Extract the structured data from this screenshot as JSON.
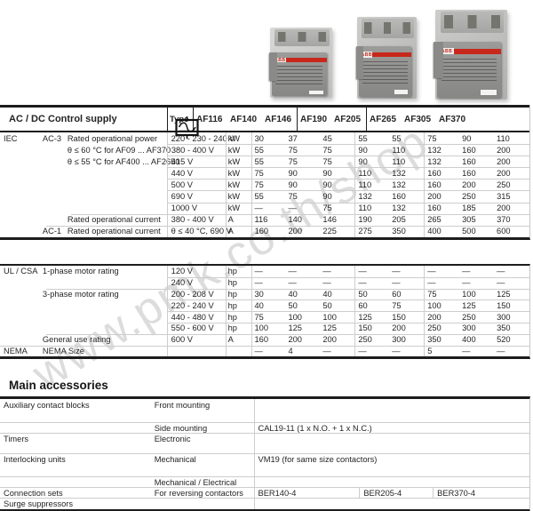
{
  "watermark": {
    "text": "www.pmk.co.th/shop"
  },
  "products": {
    "logo": "ABB"
  },
  "header": {
    "title": "AC / DC Control supply",
    "type_label": "Type",
    "models": [
      "AF116",
      "AF140",
      "AF146",
      "AF190",
      "AF205",
      "AF265",
      "AF305",
      "AF370"
    ]
  },
  "iec": {
    "rows": [
      {
        "c1": "IEC",
        "c2": "AC-3",
        "c3": "Rated operational power",
        "v": "220 - 230 - 240 V",
        "u": "kW",
        "vals": [
          "30",
          "37",
          "45",
          "55",
          "55",
          "75",
          "90",
          "110"
        ]
      },
      {
        "c1": "",
        "c2": "",
        "c3": "θ ≤ 60 °C for AF09 ... AF370",
        "v": "380 - 400 V",
        "u": "kW",
        "vals": [
          "55",
          "75",
          "75",
          "90",
          "110",
          "132",
          "160",
          "200"
        ]
      },
      {
        "c1": "",
        "c2": "",
        "c3": "θ ≤ 55 °C for AF400 ... AF2650",
        "v": "415 V",
        "u": "kW",
        "vals": [
          "55",
          "75",
          "75",
          "90",
          "110",
          "132",
          "160",
          "200"
        ]
      },
      {
        "c1": "",
        "c2": "",
        "c3": "",
        "v": "440 V",
        "u": "kW",
        "vals": [
          "75",
          "90",
          "90",
          "110",
          "132",
          "160",
          "160",
          "200"
        ]
      },
      {
        "c1": "",
        "c2": "",
        "c3": "",
        "v": "500 V",
        "u": "kW",
        "vals": [
          "75",
          "90",
          "90",
          "110",
          "132",
          "160",
          "200",
          "250"
        ]
      },
      {
        "c1": "",
        "c2": "",
        "c3": "",
        "v": "690 V",
        "u": "kW",
        "vals": [
          "55",
          "75",
          "90",
          "132",
          "160",
          "200",
          "250",
          "315"
        ]
      },
      {
        "c1": "",
        "c2": "",
        "c3": "",
        "v": "1000 V",
        "u": "kW",
        "vals": [
          "—",
          "—",
          "75",
          "110",
          "132",
          "160",
          "185",
          "200"
        ]
      },
      {
        "c1": "",
        "c2": "",
        "c3": "Rated operational current",
        "v": "380 - 400 V",
        "u": "A",
        "vals": [
          "116",
          "140",
          "146",
          "190",
          "205",
          "265",
          "305",
          "370"
        ]
      },
      {
        "c1": "",
        "c2": "AC-1",
        "c3": "Rated operational current",
        "v": "θ ≤ 40 °C, 690 V",
        "u": "A",
        "vals": [
          "160",
          "200",
          "225",
          "275",
          "350",
          "400",
          "500",
          "600"
        ]
      }
    ]
  },
  "ul": {
    "rows": [
      {
        "c1": "UL / CSA",
        "c2": "1-phase motor rating",
        "v": "120 V",
        "u": "hp",
        "vals": [
          "—",
          "—",
          "—",
          "—",
          "—",
          "—",
          "—",
          "—"
        ]
      },
      {
        "c1": "",
        "c2": "",
        "v": "240 V",
        "u": "hp",
        "vals": [
          "—",
          "—",
          "—",
          "—",
          "—",
          "—",
          "—",
          "—"
        ]
      },
      {
        "c1": "",
        "c2": "3-phase motor rating",
        "v": "200 - 208 V",
        "u": "hp",
        "vals": [
          "30",
          "40",
          "40",
          "50",
          "60",
          "75",
          "100",
          "125"
        ]
      },
      {
        "c1": "",
        "c2": "",
        "v": "220 - 240 V",
        "u": "hp",
        "vals": [
          "40",
          "50",
          "50",
          "60",
          "75",
          "100",
          "125",
          "150"
        ]
      },
      {
        "c1": "",
        "c2": "",
        "v": "440 - 480 V",
        "u": "hp",
        "vals": [
          "75",
          "100",
          "100",
          "125",
          "150",
          "200",
          "250",
          "300"
        ]
      },
      {
        "c1": "",
        "c2": "",
        "v": "550 - 600 V",
        "u": "hp",
        "vals": [
          "100",
          "125",
          "125",
          "150",
          "200",
          "250",
          "300",
          "350"
        ]
      },
      {
        "c1": "",
        "c2": "General use rating",
        "v": "600 V",
        "u": "A",
        "vals": [
          "160",
          "200",
          "200",
          "250",
          "300",
          "350",
          "400",
          "520"
        ]
      },
      {
        "c1": "NEMA",
        "c2": "NEMA Size",
        "v": "",
        "u": "",
        "vals": [
          "—",
          "4",
          "—",
          "—",
          "—",
          "5",
          "—",
          "—"
        ]
      }
    ]
  },
  "accessories": {
    "title": "Main accessories",
    "rows": [
      {
        "c1": "Auxiliary contact blocks",
        "c2": "Front mounting",
        "vals": [
          ""
        ]
      },
      {
        "c1": "",
        "c2": "Side mounting",
        "vals": [
          "CAL19-11 (1 x N.O. + 1 x N.C.)"
        ]
      },
      {
        "c1": "Timers",
        "c2": "Electronic",
        "vals": [
          ""
        ]
      },
      {
        "c1": "Interlocking units",
        "c2": "Mechanical",
        "vals": [
          "VM19 (for same size contactors)"
        ]
      },
      {
        "c1": "",
        "c2": "Mechanical / Electrical",
        "vals": [
          ""
        ]
      },
      {
        "c1": "Connection sets",
        "c2": "For reversing contactors",
        "vals": [
          "BER140-4",
          "BER205-4",
          "BER370-4"
        ]
      },
      {
        "c1": "Surge suppressors",
        "c2": "",
        "vals": [
          ""
        ]
      }
    ]
  },
  "colors": {
    "abb_red": "#c8271b",
    "border_dark": "#1c1c1c",
    "separator_gray": "#cdcdcd",
    "watermark_gray": "#dcdcdc"
  }
}
